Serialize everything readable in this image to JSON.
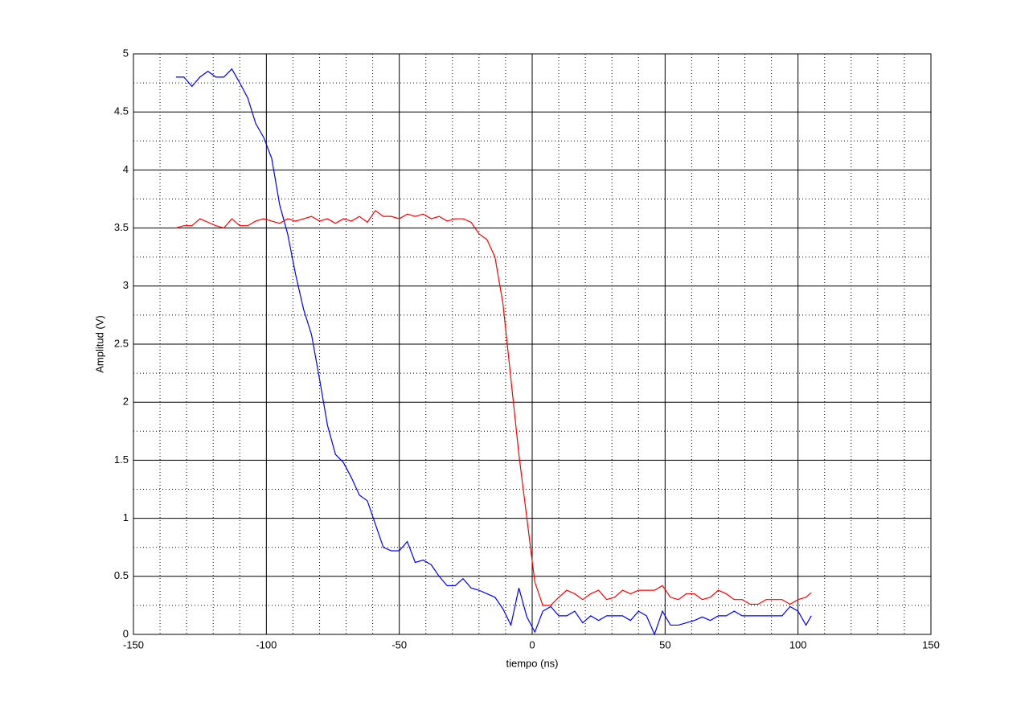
{
  "chart_data": {
    "type": "line",
    "xlabel": "tiempo (ns)",
    "ylabel": "Amplitud (V)",
    "x": [
      -134,
      -131,
      -128,
      -125,
      -122,
      -119,
      -116,
      -113,
      -110,
      -107,
      -104,
      -101,
      -98,
      -95,
      -92,
      -89,
      -86,
      -83,
      -80,
      -77,
      -74,
      -71,
      -68,
      -65,
      -62,
      -59,
      -56,
      -53,
      -50,
      -47,
      -44,
      -41,
      -38,
      -35,
      -32,
      -29,
      -26,
      -23,
      -20,
      -17,
      -14,
      -11,
      -8,
      -5,
      -2,
      1,
      4,
      7,
      10,
      13,
      16,
      19,
      22,
      25,
      28,
      31,
      34,
      37,
      40,
      43,
      46,
      49,
      52,
      55,
      58,
      61,
      64,
      67,
      70,
      73,
      76,
      79,
      82,
      85,
      88,
      91,
      94,
      97,
      100,
      103,
      105
    ],
    "series": [
      {
        "color": "#0000ff",
        "values": [
          4.8,
          4.8,
          4.72,
          4.8,
          4.85,
          4.8,
          4.8,
          4.87,
          4.75,
          4.62,
          4.4,
          4.28,
          4.1,
          3.7,
          3.45,
          3.1,
          2.8,
          2.58,
          2.2,
          1.8,
          1.55,
          1.48,
          1.35,
          1.2,
          1.15,
          0.95,
          0.75,
          0.72,
          0.72,
          0.8,
          0.62,
          0.64,
          0.6,
          0.5,
          0.42,
          0.42,
          0.48,
          0.4,
          0.38,
          0.35,
          0.32,
          0.22,
          0.08,
          0.4,
          0.15,
          0.02,
          0.2,
          0.24,
          0.16,
          0.16,
          0.2,
          0.1,
          0.16,
          0.12,
          0.16,
          0.16,
          0.16,
          0.12,
          0.2,
          0.16,
          0.0,
          0.2,
          0.08,
          0.08,
          0.1,
          0.12,
          0.15,
          0.12,
          0.16,
          0.16,
          0.2,
          0.16,
          0.16,
          0.16,
          0.16,
          0.16,
          0.16,
          0.24,
          0.2,
          0.08,
          0.16
        ]
      },
      {
        "color": "#ff0000",
        "values": [
          3.5,
          3.52,
          3.52,
          3.58,
          3.55,
          3.52,
          3.5,
          3.58,
          3.52,
          3.52,
          3.56,
          3.58,
          3.56,
          3.54,
          3.58,
          3.56,
          3.58,
          3.6,
          3.56,
          3.58,
          3.54,
          3.58,
          3.56,
          3.6,
          3.55,
          3.65,
          3.6,
          3.6,
          3.58,
          3.62,
          3.6,
          3.62,
          3.58,
          3.6,
          3.56,
          3.58,
          3.58,
          3.55,
          3.45,
          3.4,
          3.25,
          2.85,
          2.2,
          1.55,
          1.0,
          0.45,
          0.25,
          0.25,
          0.32,
          0.38,
          0.35,
          0.3,
          0.35,
          0.38,
          0.3,
          0.32,
          0.38,
          0.35,
          0.38,
          0.38,
          0.38,
          0.42,
          0.32,
          0.3,
          0.35,
          0.35,
          0.3,
          0.32,
          0.38,
          0.35,
          0.3,
          0.3,
          0.26,
          0.26,
          0.3,
          0.3,
          0.3,
          0.26,
          0.3,
          0.32,
          0.36
        ]
      }
    ],
    "xlim": [
      -150,
      150
    ],
    "xticks": [
      -150,
      -100,
      -50,
      0,
      50,
      100,
      150
    ],
    "ylim": [
      0,
      5
    ],
    "yticks": [
      0,
      0.5,
      1,
      1.5,
      2,
      2.5,
      3,
      3.5,
      4,
      4.5,
      5
    ],
    "grid": true,
    "minor_grid": {
      "x": 5,
      "y": 2
    }
  }
}
